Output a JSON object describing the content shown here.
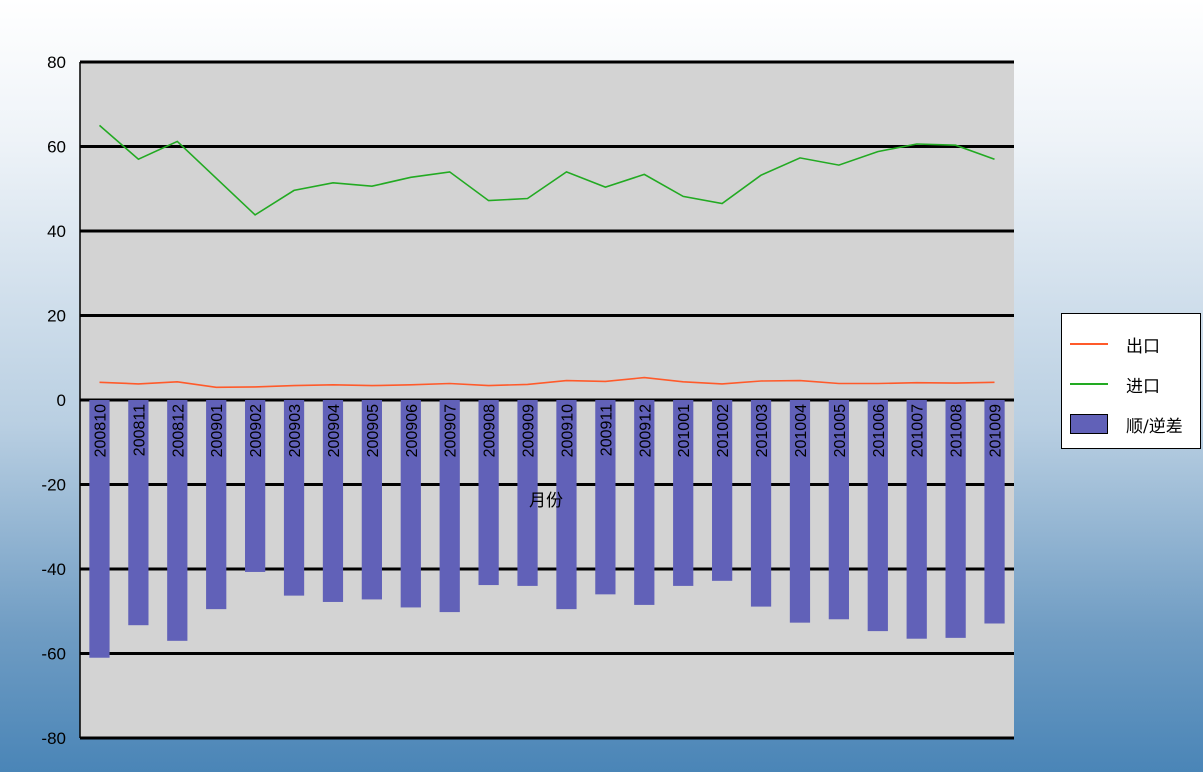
{
  "chart_data": {
    "type": "bar",
    "x_label": "月份",
    "ylim": [
      -80,
      80
    ],
    "yticks": [
      80,
      60,
      40,
      20,
      0,
      -20,
      -40,
      -60,
      -80
    ],
    "grid": true,
    "legend_position": "right",
    "categories": [
      "200810",
      "200811",
      "200812",
      "200901",
      "200902",
      "200903",
      "200904",
      "200905",
      "200906",
      "200907",
      "200908",
      "200909",
      "200910",
      "200911",
      "200912",
      "201001",
      "201002",
      "201003",
      "201004",
      "201005",
      "201006",
      "201007",
      "201008",
      "201009"
    ],
    "series": [
      {
        "name": "出口",
        "type": "line",
        "color": "#ff5a2a",
        "values": [
          4.2,
          3.8,
          4.3,
          3.0,
          3.1,
          3.4,
          3.6,
          3.4,
          3.6,
          3.9,
          3.4,
          3.7,
          4.6,
          4.4,
          5.3,
          4.3,
          3.8,
          4.5,
          4.6,
          3.9,
          3.9,
          4.1,
          4.0,
          4.2
        ]
      },
      {
        "name": "进口",
        "type": "line",
        "color": "#22aa22",
        "values": [
          65.0,
          57.0,
          61.2,
          52.5,
          43.8,
          49.6,
          51.4,
          50.6,
          52.7,
          54.0,
          47.2,
          47.7,
          54.0,
          50.4,
          53.4,
          48.2,
          46.5,
          53.2,
          57.3,
          55.6,
          58.8,
          60.6,
          60.3,
          57.0
        ]
      },
      {
        "name": "顺/逆差",
        "type": "bar",
        "color": "#6161b8",
        "values": [
          -61.0,
          -53.3,
          -57.0,
          -49.5,
          -40.7,
          -46.3,
          -47.8,
          -47.2,
          -49.1,
          -50.2,
          -43.8,
          -44.0,
          -49.5,
          -46.0,
          -48.5,
          -44.0,
          -42.8,
          -48.9,
          -52.7,
          -51.9,
          -54.7,
          -56.5,
          -56.3,
          -52.9
        ]
      }
    ]
  }
}
